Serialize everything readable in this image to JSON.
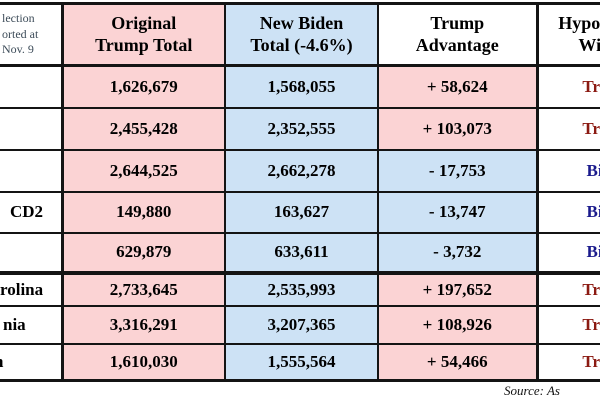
{
  "page": {
    "corner_lines": [
      "lection",
      "orted at",
      "Nov. 9"
    ],
    "headers": {
      "trump": [
        "Original",
        "Trump Total"
      ],
      "biden": [
        "New Biden",
        "Total (-4.6%)"
      ],
      "advantage": [
        "Trump",
        "Advantage"
      ],
      "winner": [
        "Hypothetical",
        "Winner"
      ]
    },
    "rows": [
      {
        "state": "",
        "trump_total": "1,626,679",
        "biden_total": "1,568,055",
        "advantage": "+ 58,624",
        "winner": "Trump"
      },
      {
        "state": "",
        "trump_total": "2,455,428",
        "biden_total": "2,352,555",
        "advantage": "+ 103,073",
        "winner": "Trump"
      },
      {
        "state": "",
        "trump_total": "2,644,525",
        "biden_total": "2,662,278",
        "advantage": "- 17,753",
        "winner": "Biden"
      },
      {
        "state": "CD2",
        "trump_total": "149,880",
        "biden_total": "163,627",
        "advantage": "- 13,747",
        "winner": "Biden"
      },
      {
        "state": "",
        "trump_total": "629,879",
        "biden_total": "633,611",
        "advantage": "- 3,732",
        "winner": "Biden"
      },
      {
        "state": "rolina",
        "trump_total": "2,733,645",
        "biden_total": "2,535,993",
        "advantage": "+ 197,652",
        "winner": "Trump"
      },
      {
        "state": "nia",
        "trump_total": "3,316,291",
        "biden_total": "3,207,365",
        "advantage": "+ 108,926",
        "winner": "Trump"
      },
      {
        "state": "n",
        "trump_total": "1,610,030",
        "biden_total": "1,555,564",
        "advantage": "+ 54,466",
        "winner": "Trump"
      }
    ],
    "source_note": "Source: As",
    "colors": {
      "column_pink": "#FBD3D4",
      "column_blue": "#CDE2F5",
      "trump_red": "#8B1A12",
      "biden_navy": "#1A1A8C",
      "grid_black": "#141414"
    }
  }
}
